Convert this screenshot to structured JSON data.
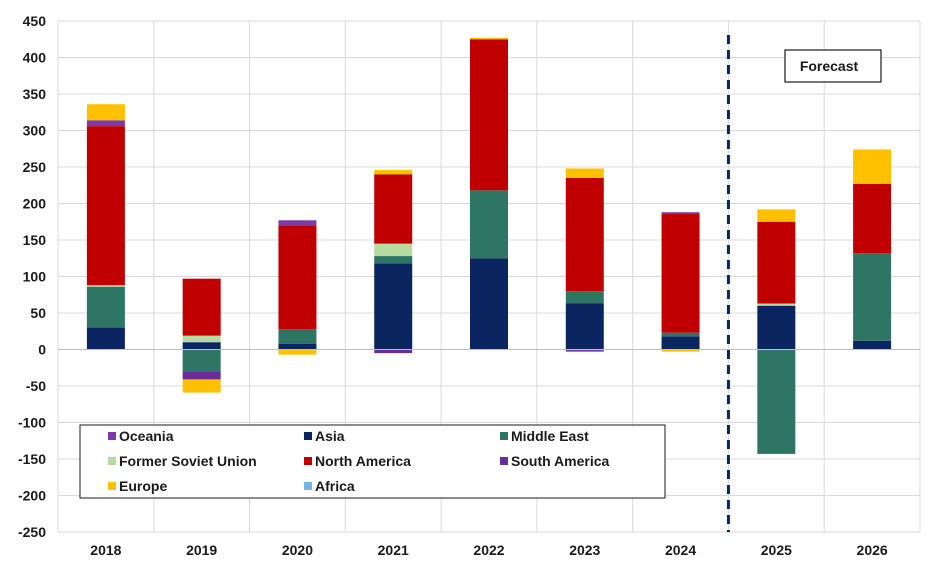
{
  "chart_data": {
    "type": "bar",
    "stacked": true,
    "title": "",
    "xlabel": "",
    "ylabel": "",
    "ylim": [
      -250,
      450
    ],
    "yticks": [
      450,
      400,
      350,
      300,
      250,
      200,
      150,
      100,
      50,
      0,
      -50,
      -100,
      -150,
      -200,
      -250
    ],
    "grid": true,
    "categories": [
      "2018",
      "2019",
      "2020",
      "2021",
      "2022",
      "2023",
      "2024",
      "2025",
      "2026"
    ],
    "forecast_divider_after": "2024",
    "annotation": "Forecast",
    "legend_position": "bottom-left",
    "series": [
      {
        "name": "Asia",
        "color": "#0b2560",
        "values": [
          30,
          10,
          8,
          118,
          125,
          63,
          18,
          60,
          12
        ]
      },
      {
        "name": "Middle East",
        "color": "#2e7563",
        "values": [
          56,
          -30,
          20,
          10,
          93,
          17,
          5,
          -143,
          120
        ]
      },
      {
        "name": "Former Soviet Union",
        "color": "#b7daa0",
        "values": [
          2,
          9,
          0,
          17,
          0,
          0,
          0,
          3,
          0
        ]
      },
      {
        "name": "North America",
        "color": "#c00000",
        "values": [
          218,
          78,
          142,
          95,
          207,
          155,
          163,
          112,
          95
        ]
      },
      {
        "name": "South America",
        "color": "#6a2c9a",
        "values": [
          0,
          -11,
          0,
          -5,
          0,
          0,
          2,
          0,
          0
        ]
      },
      {
        "name": "Oceania",
        "color": "#7b3aa8",
        "values": [
          8,
          0,
          7,
          0,
          0,
          -3,
          0,
          0,
          0
        ]
      },
      {
        "name": "Europe",
        "color": "#ffc000",
        "values": [
          22,
          -18,
          -7,
          6,
          2,
          13,
          -3,
          17,
          47
        ]
      },
      {
        "name": "Africa",
        "color": "#74b5e4",
        "values": [
          0,
          0,
          0,
          0,
          0,
          0,
          0,
          0,
          0
        ]
      }
    ],
    "legend": [
      [
        "Oceania",
        "Asia",
        "Middle East"
      ],
      [
        "Former Soviet Union",
        "North America",
        "South America"
      ],
      [
        "Europe",
        "Africa"
      ]
    ]
  }
}
